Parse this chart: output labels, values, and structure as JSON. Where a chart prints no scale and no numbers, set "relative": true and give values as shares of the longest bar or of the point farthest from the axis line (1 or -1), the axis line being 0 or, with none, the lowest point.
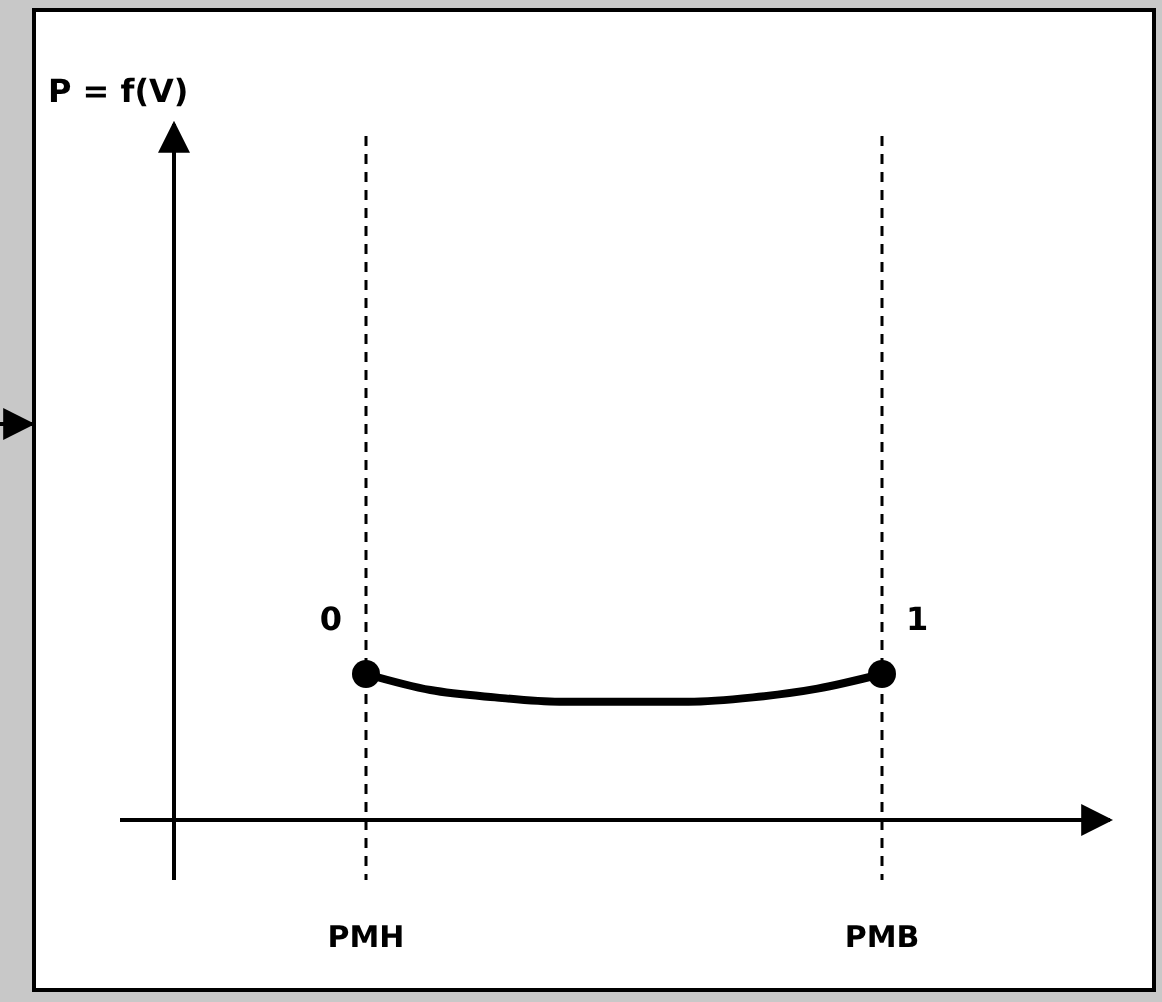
{
  "chart_data": {
    "type": "line",
    "relative": true,
    "categories": [
      "PMH",
      null,
      null,
      null,
      null,
      null,
      null,
      null,
      "PMB"
    ],
    "series": [
      {
        "color": "#000000",
        "values": [
          1,
          0.89,
          0.84,
          0.81,
          0.81,
          0.81,
          0.84,
          0.9,
          1
        ]
      },
      {
        "type": "scatter",
        "color": "#000000",
        "x": [
          "PMH",
          "PMB"
        ],
        "values": [
          1,
          1
        ]
      }
    ],
    "ref_lines": [
      {
        "axis": "x",
        "value": "PMH",
        "color": "#000000",
        "line_style": "dashed"
      },
      {
        "axis": "x",
        "value": "PMB",
        "color": "#000000",
        "line_style": "dashed"
      }
    ],
    "annotations": [
      "P = f(V)",
      {
        "text": "0",
        "x": "PMH",
        "y": 1
      },
      {
        "text": "1",
        "x": "PMB",
        "y": 1
      }
    ]
  }
}
